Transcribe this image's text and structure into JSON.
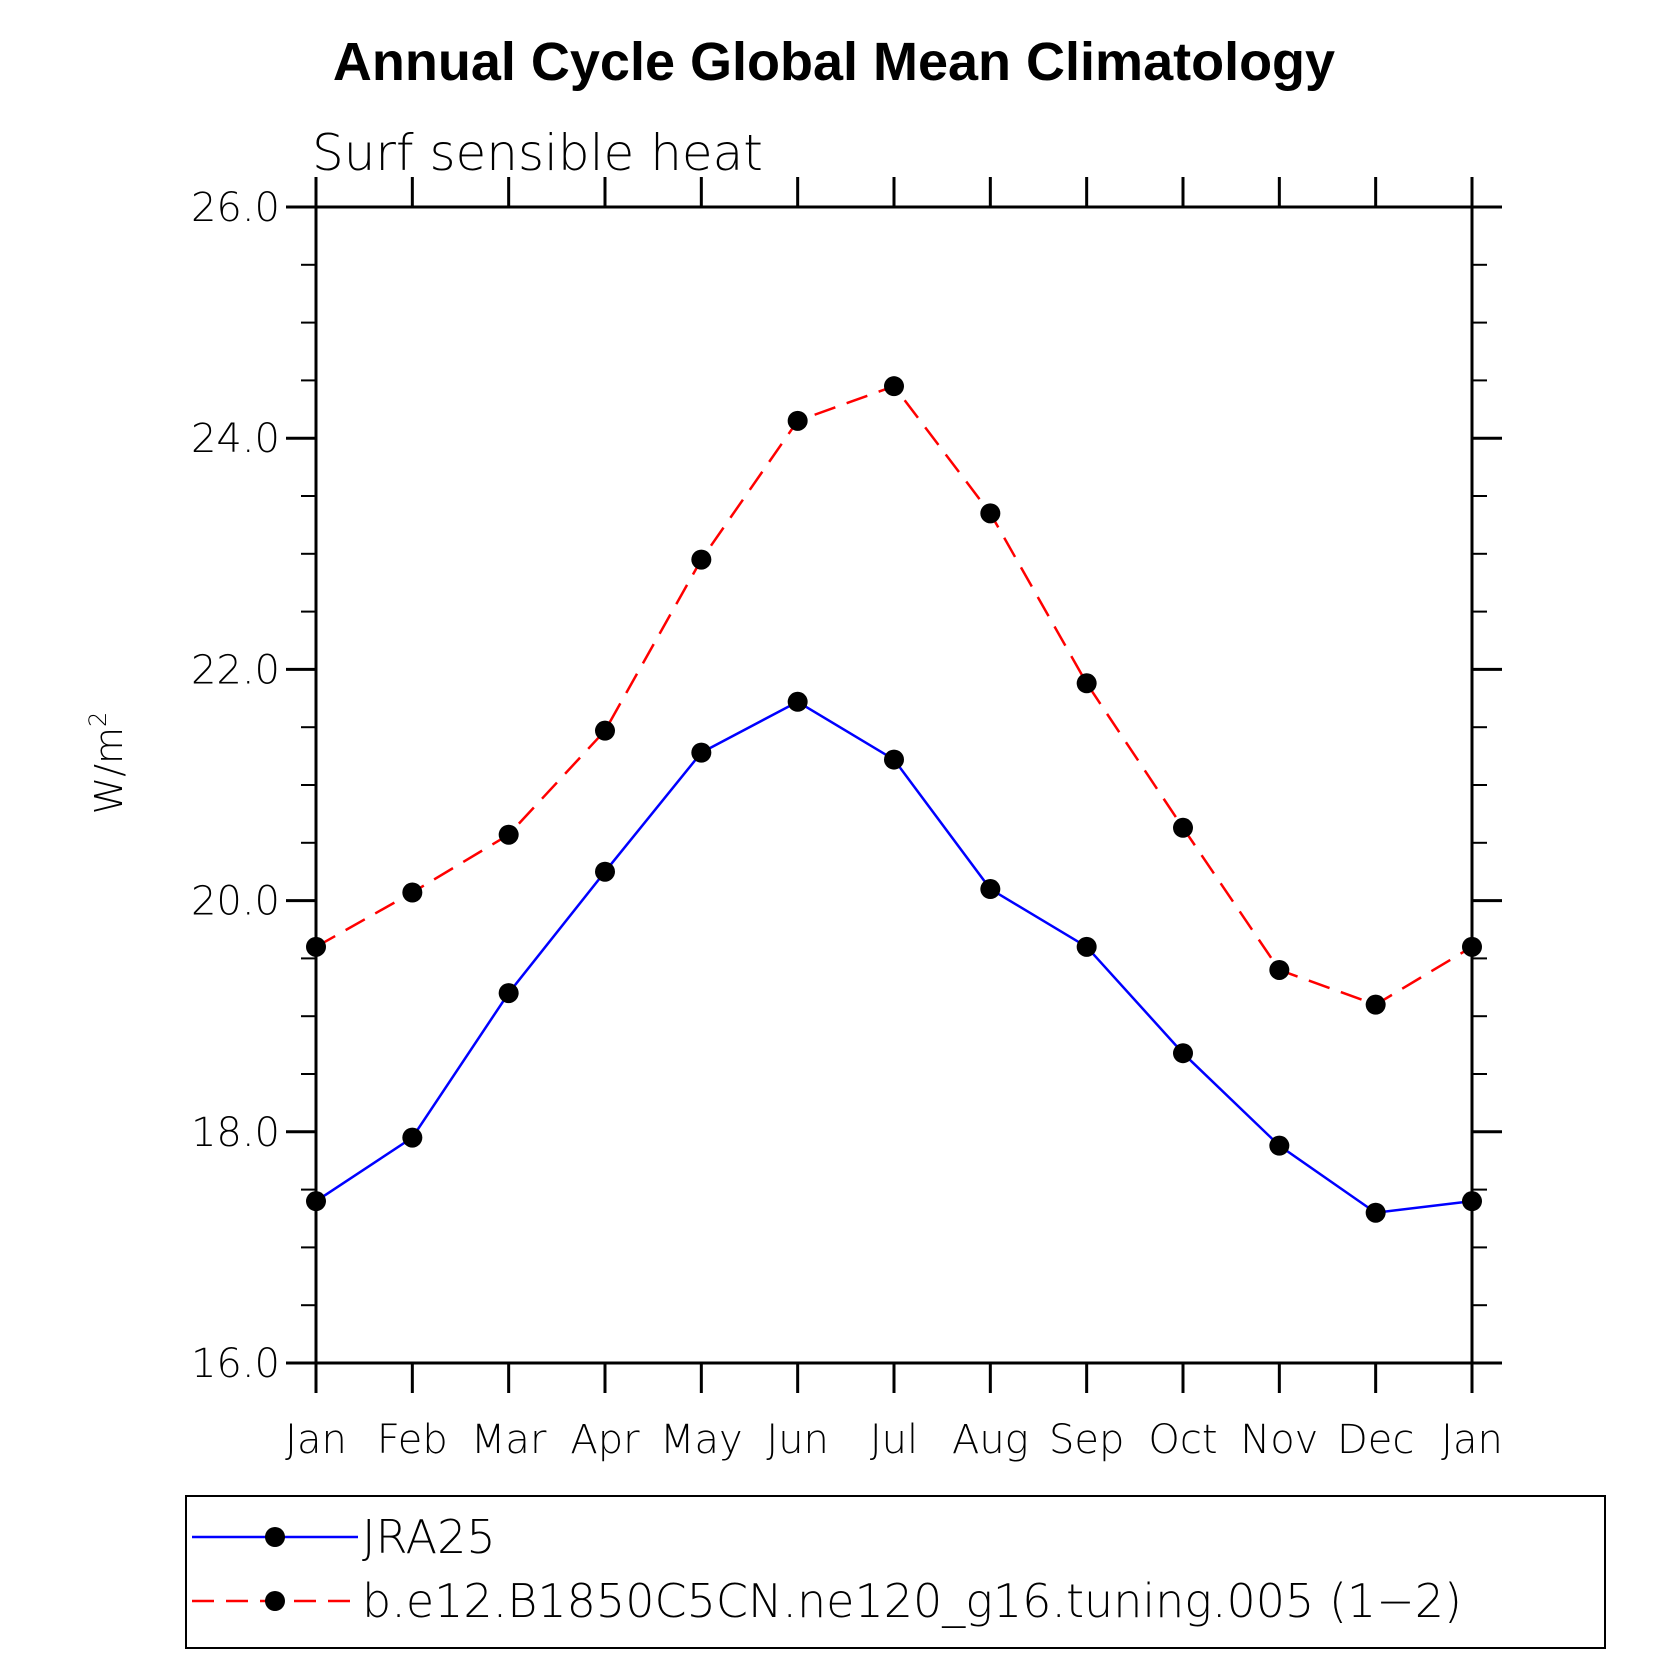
{
  "chart_data": {
    "type": "line",
    "title": "Annual Cycle Global Mean Climatology",
    "subtitle": "Surf sensible heat",
    "ylabel_main": "W/m",
    "ylabel_sup": "2",
    "xlabel": "",
    "categories": [
      "Jan",
      "Feb",
      "Mar",
      "Apr",
      "May",
      "Jun",
      "Jul",
      "Aug",
      "Sep",
      "Oct",
      "Nov",
      "Dec",
      "Jan"
    ],
    "ylim": [
      16.0,
      26.0
    ],
    "yticks": [
      "16.0",
      "18.0",
      "20.0",
      "22.0",
      "24.0",
      "26.0"
    ],
    "ytick_values": [
      16,
      18,
      20,
      22,
      24,
      26
    ],
    "grid": false,
    "legend_position": "bottom",
    "series": [
      {
        "name": "JRA25",
        "color": "#0000ff",
        "dash": "solid",
        "values": [
          17.4,
          17.95,
          19.2,
          20.25,
          21.28,
          21.72,
          21.22,
          20.1,
          19.6,
          18.68,
          17.88,
          17.3,
          17.4
        ]
      },
      {
        "name": "b.e12.B1850C5CN.ne120_g16.tuning.005 (1−2)",
        "color": "#ff0000",
        "dash": "dashed",
        "values": [
          19.6,
          20.07,
          20.57,
          21.47,
          22.95,
          24.15,
          24.45,
          23.35,
          21.88,
          20.63,
          19.4,
          19.1,
          19.6
        ]
      }
    ],
    "marker_color": "#000000"
  }
}
